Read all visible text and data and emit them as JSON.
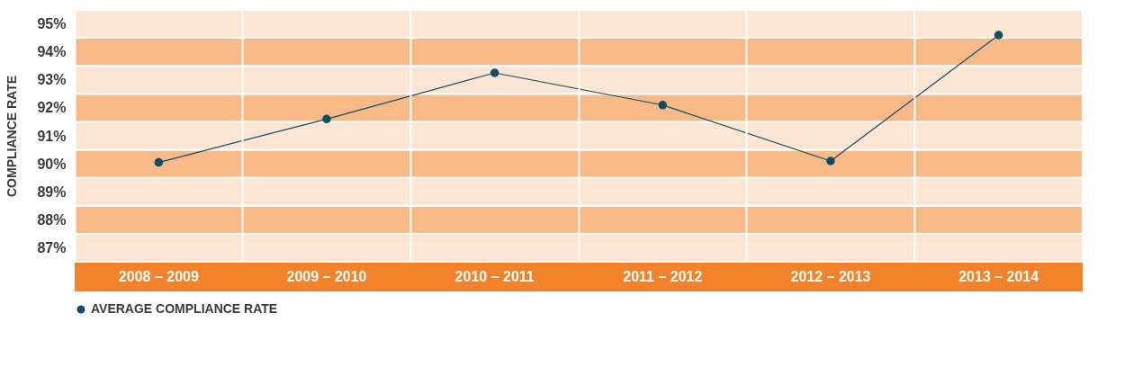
{
  "chart_data": {
    "type": "line",
    "ylabel": "COMPLIANCE RATE",
    "categories": [
      "2008 – 2009",
      "2009 – 2010",
      "2010 – 2011",
      "2011 – 2012",
      "2012 – 2013",
      "2013 – 2014"
    ],
    "series": [
      {
        "name": "AVERAGE COMPLIANCE RATE",
        "color": "#0e4d64",
        "values": [
          90.05,
          91.6,
          93.25,
          92.1,
          90.1,
          94.6
        ]
      }
    ],
    "ylim": [
      86.5,
      95.5
    ],
    "yticks": [
      {
        "value": 87,
        "label": "87%"
      },
      {
        "value": 88,
        "label": "88%"
      },
      {
        "value": 89,
        "label": "89%"
      },
      {
        "value": 90,
        "label": "90%"
      },
      {
        "value": 91,
        "label": "91%"
      },
      {
        "value": 92,
        "label": "92%"
      },
      {
        "value": 93,
        "label": "93%"
      },
      {
        "value": 94,
        "label": "94%"
      },
      {
        "value": 95,
        "label": "95%"
      }
    ],
    "bands": [
      {
        "axis": "y",
        "from": 86.5,
        "to": 87.5,
        "color": "#fde5d3"
      },
      {
        "axis": "y",
        "from": 87.5,
        "to": 88.5,
        "color": "#f9ba8a"
      },
      {
        "axis": "y",
        "from": 88.5,
        "to": 89.5,
        "color": "#fde5d3"
      },
      {
        "axis": "y",
        "from": 89.5,
        "to": 90.5,
        "color": "#f9ba8a"
      },
      {
        "axis": "y",
        "from": 90.5,
        "to": 91.5,
        "color": "#fde5d3"
      },
      {
        "axis": "y",
        "from": 91.5,
        "to": 92.5,
        "color": "#f9ba8a"
      },
      {
        "axis": "y",
        "from": 92.5,
        "to": 93.5,
        "color": "#fde5d3"
      },
      {
        "axis": "y",
        "from": 93.5,
        "to": 94.5,
        "color": "#f9ba8a"
      },
      {
        "axis": "y",
        "from": 94.5,
        "to": 95.5,
        "color": "#fde5d3"
      }
    ],
    "grid": "x",
    "legend": "bottom",
    "marker": "circle",
    "line_style": "solid"
  }
}
